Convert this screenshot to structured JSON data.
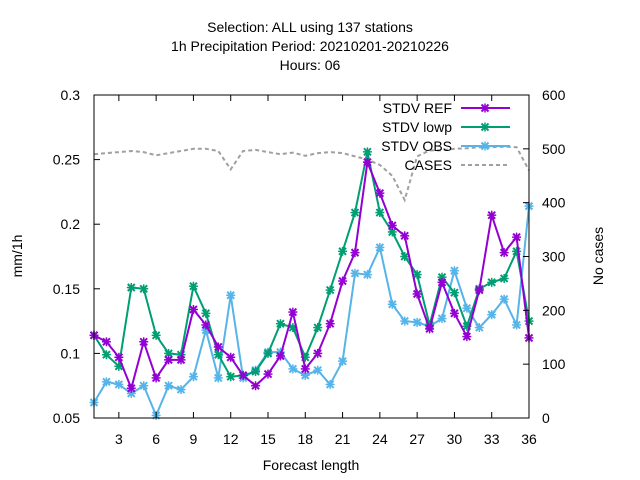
{
  "chart_data": {
    "type": "line",
    "title_lines": [
      "Selection: ALL using   137 stations",
      "1h Precipitation   Period: 20210201-20210226",
      "Hours:  06"
    ],
    "xlabel": "Forecast length",
    "ylabel": "mm/1h",
    "y2label": "No cases",
    "xlim": [
      1,
      36
    ],
    "ylim": [
      0.05,
      0.3
    ],
    "y2lim": [
      0,
      600
    ],
    "xticks": [
      3,
      6,
      9,
      12,
      15,
      18,
      21,
      24,
      27,
      30,
      33,
      36
    ],
    "yticks": [
      0.05,
      0.1,
      0.15,
      0.2,
      0.25,
      0.3
    ],
    "y2ticks": [
      0,
      100,
      200,
      300,
      400,
      500,
      600
    ],
    "x": [
      1,
      2,
      3,
      4,
      5,
      6,
      7,
      8,
      9,
      10,
      11,
      12,
      13,
      14,
      15,
      16,
      17,
      18,
      19,
      20,
      21,
      22,
      23,
      24,
      25,
      26,
      27,
      28,
      29,
      30,
      31,
      32,
      33,
      34,
      35,
      36
    ],
    "series": [
      {
        "name": "STDV REF",
        "axis": "y",
        "color": "#9400d3",
        "marker": "x",
        "values": [
          0.114,
          0.109,
          0.097,
          0.073,
          0.109,
          0.081,
          0.095,
          0.095,
          0.134,
          0.122,
          0.105,
          0.097,
          0.083,
          0.075,
          0.084,
          0.098,
          0.132,
          0.088,
          0.1,
          0.123,
          0.156,
          0.178,
          0.248,
          0.224,
          0.199,
          0.191,
          0.146,
          0.119,
          0.155,
          0.131,
          0.113,
          0.149,
          0.207,
          0.178,
          0.19,
          0.112
        ]
      },
      {
        "name": "STDV lowp",
        "axis": "y",
        "color": "#009e73",
        "marker": "x",
        "values": [
          0.114,
          0.099,
          0.09,
          0.151,
          0.15,
          0.114,
          0.1,
          0.099,
          0.152,
          0.131,
          0.099,
          0.082,
          0.083,
          0.086,
          0.1,
          0.123,
          0.12,
          0.097,
          0.12,
          0.149,
          0.179,
          0.209,
          0.256,
          0.209,
          0.194,
          0.175,
          0.161,
          0.122,
          0.159,
          0.147,
          0.121,
          0.15,
          0.155,
          0.158,
          0.179,
          0.125
        ]
      },
      {
        "name": "STDV OBS",
        "axis": "y",
        "color": "#56b4e9",
        "marker": "x",
        "values": [
          0.062,
          0.078,
          0.076,
          0.069,
          0.075,
          0.052,
          0.075,
          0.072,
          0.082,
          0.118,
          0.081,
          0.145,
          0.081,
          0.087,
          0.101,
          0.101,
          0.088,
          0.083,
          0.087,
          0.076,
          0.094,
          0.162,
          0.161,
          0.182,
          0.138,
          0.125,
          0.124,
          0.121,
          0.127,
          0.164,
          0.135,
          0.12,
          0.13,
          0.142,
          0.122,
          0.214
        ]
      },
      {
        "name": "CASES",
        "axis": "y2",
        "color": "#a0a0a0",
        "marker": "none",
        "dashed": true,
        "values": [
          490,
          492,
          494,
          496,
          494,
          488,
          492,
          496,
          500,
          500,
          496,
          462,
          496,
          498,
          494,
          490,
          493,
          487,
          492,
          494,
          492,
          486,
          480,
          470,
          450,
          405,
          486,
          497,
          497,
          500,
          501,
          503,
          503,
          504,
          503,
          460
        ]
      }
    ],
    "legend_position": "top-right"
  }
}
